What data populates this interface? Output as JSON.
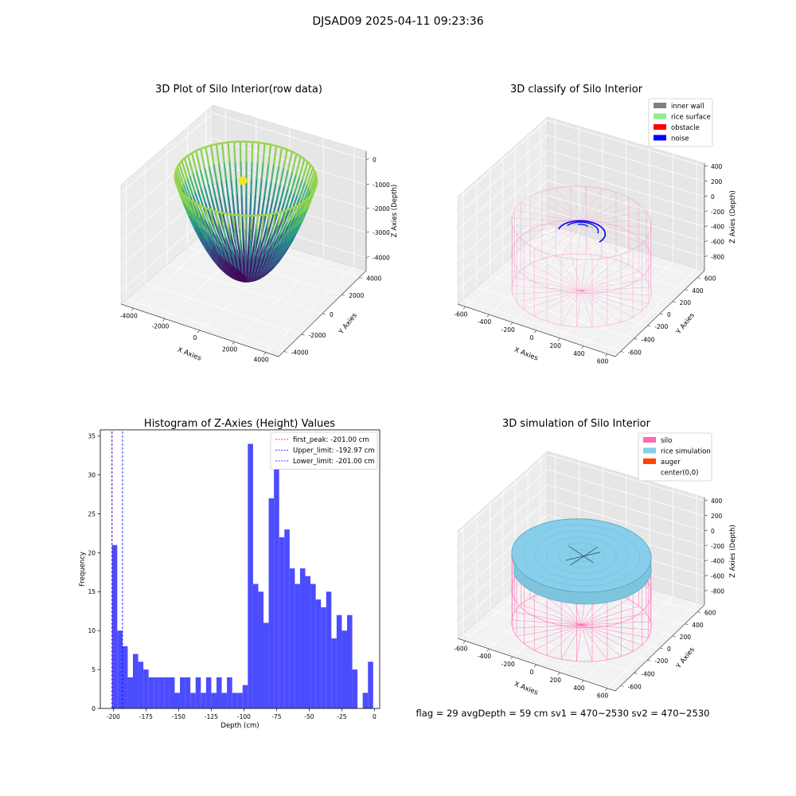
{
  "figure": {
    "suptitle": "DJSAD09 2025-04-11 09:23:36",
    "status_line": "flag = 29  avgDepth = 59 cm    sv1 = 470~2530  sv2 = 470~2530"
  },
  "chart_data": [
    {
      "type": "scatter",
      "projection": "3d",
      "title": "3D Plot of Silo Interior(row data)",
      "xlabel": "X Axies",
      "ylabel": "Y Axies",
      "zlabel": "Z Axies (Depth)",
      "xticks": [
        "-4000",
        "-2000",
        "0",
        "2000",
        "4000"
      ],
      "yticks": [
        "-4000",
        "-2000",
        "0",
        "2000",
        "4000"
      ],
      "zticks": [
        "0",
        "-1000",
        "-2000",
        "-3000",
        "-4000"
      ],
      "xlim": [
        -4500,
        4500
      ],
      "ylim": [
        -4500,
        4500
      ],
      "zlim": [
        -4500,
        300
      ],
      "surface": "paraboloid",
      "radius": 3500,
      "depth_min": -4000,
      "colormap": "viridis",
      "grid": true
    },
    {
      "type": "scatter",
      "projection": "3d",
      "title": "3D classify of Silo Interior",
      "xlabel": "X Axies",
      "ylabel": "Y Axies",
      "zlabel": "Z Axies (Depth)",
      "xticks": [
        "-600",
        "-400",
        "-200",
        "0",
        "200",
        "400",
        "600"
      ],
      "yticks": [
        "-600",
        "-400",
        "-200",
        "0",
        "200",
        "400",
        "600"
      ],
      "zticks": [
        "400",
        "200",
        "0",
        "-200",
        "-400",
        "-600",
        "-800"
      ],
      "xlim": [
        -650,
        650
      ],
      "ylim": [
        -650,
        650
      ],
      "zlim": [
        -900,
        450
      ],
      "cylinder": {
        "radius": 500,
        "z_top": -50,
        "z_bottom": -900,
        "color": "#ff69b4"
      },
      "legend": {
        "position": "upper right",
        "entries": [
          {
            "label": "inner wall",
            "color": "#808080"
          },
          {
            "label": "rice surface",
            "color": "#90ee90"
          },
          {
            "label": "obstacle",
            "color": "#ff0000"
          },
          {
            "label": "noise",
            "color": "#0000ff"
          }
        ]
      },
      "grid": true
    },
    {
      "type": "bar",
      "title": "Histogram of Z-Axies (Height) Values",
      "xlabel": "Depth (cm)",
      "ylabel": "Frequency",
      "bin_width": 4,
      "bins_start": [
        -201,
        -197,
        -193,
        -189,
        -185,
        -181,
        -177,
        -173,
        -169,
        -165,
        -161,
        -157,
        -153,
        -149,
        -145,
        -141,
        -137,
        -133,
        -129,
        -125,
        -121,
        -117,
        -113,
        -109,
        -105,
        -101,
        -97,
        -93,
        -89,
        -85,
        -81,
        -77,
        -73,
        -69,
        -65,
        -61,
        -57,
        -53,
        -49,
        -45,
        -41,
        -37,
        -33,
        -29,
        -25,
        -21,
        -17,
        -13,
        -9,
        -5,
        -1
      ],
      "values": [
        21,
        10,
        8,
        4,
        7,
        6,
        5,
        4,
        4,
        4,
        4,
        4,
        2,
        4,
        4,
        2,
        4,
        2,
        4,
        2,
        4,
        2,
        4,
        2,
        2,
        3,
        34,
        16,
        15,
        11,
        27,
        34,
        22,
        23,
        18,
        16,
        18,
        17,
        16,
        14,
        13,
        15,
        9,
        12,
        10,
        12,
        5,
        0,
        2,
        6,
        0
      ],
      "xlim": [
        -210,
        4
      ],
      "ylim": [
        0,
        35.8
      ],
      "xticks": [
        -200,
        -175,
        -150,
        -125,
        -100,
        -75,
        -50,
        -25,
        0
      ],
      "yticks": [
        0,
        5,
        10,
        15,
        20,
        25,
        30,
        35
      ],
      "bar_color": "#4c4cff",
      "reference_lines": [
        {
          "x": -201.0,
          "color": "#ff0000"
        },
        {
          "x": -192.97,
          "color": "#0000ff"
        },
        {
          "x": -201.0,
          "color": "#0000ff"
        }
      ],
      "legend": {
        "position": "upper right",
        "entries": [
          {
            "label": "first_peak: -201.00 cm",
            "color": "#ff0000"
          },
          {
            "label": "Upper_limit: -192.97 cm",
            "color": "#0000ff"
          },
          {
            "label": "Lower_limit: -201.00 cm",
            "color": "#0000ff"
          }
        ]
      },
      "grid": false
    },
    {
      "type": "area",
      "projection": "3d",
      "title": "3D simulation of Silo Interior",
      "xlabel": "X Axies",
      "ylabel": "Y Axies",
      "zlabel": "Z Axies (Depth)",
      "xticks": [
        "-600",
        "-400",
        "-200",
        "0",
        "200",
        "400",
        "600"
      ],
      "yticks": [
        "-600",
        "-400",
        "-200",
        "0",
        "200",
        "400",
        "600"
      ],
      "zticks": [
        "400",
        "200",
        "0",
        "-200",
        "-400",
        "-600",
        "-800"
      ],
      "xlim": [
        -650,
        650
      ],
      "ylim": [
        -650,
        650
      ],
      "zlim": [
        -900,
        450
      ],
      "cylinder": {
        "radius": 500,
        "z_top": -50,
        "z_bottom": -900,
        "color": "#ff69b4"
      },
      "rice_surface": {
        "z_avg": -59,
        "color": "#87ceeb"
      },
      "legend": {
        "position": "upper right",
        "entries": [
          {
            "label": "silo",
            "color": "#ff69b4"
          },
          {
            "label": "rice simulation",
            "color": "#87ceeb"
          },
          {
            "label": "auger",
            "color": "#ff4500"
          },
          {
            "label": "center(0,0)",
            "color": "#ffffff"
          }
        ]
      },
      "grid": true
    }
  ]
}
